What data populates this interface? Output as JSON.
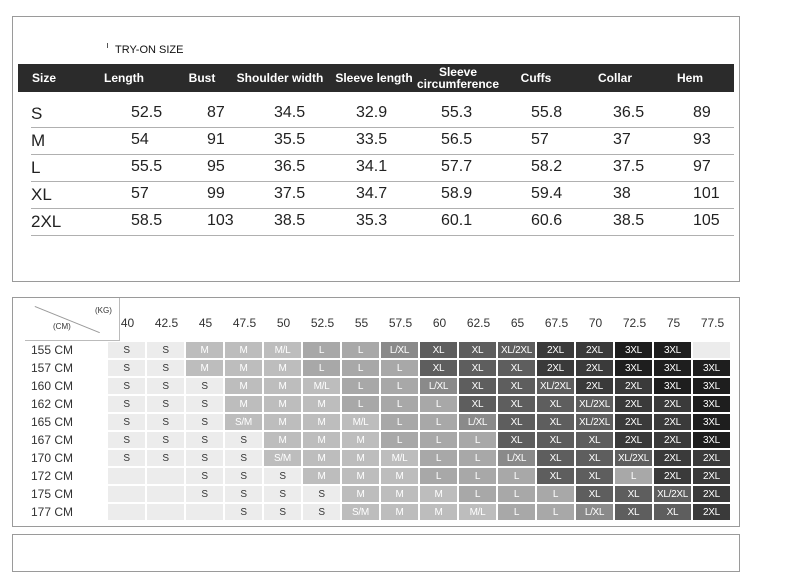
{
  "measurement": {
    "label": "TRY-ON SIZE",
    "headers": [
      "Size",
      "Length",
      "Bust",
      "Shoulder width",
      "Sleeve length",
      "Sleeve circumference",
      "Cuffs",
      "Collar",
      "Hem"
    ],
    "rows": [
      [
        "S",
        "52.5",
        "87",
        "34.5",
        "32.9",
        "55.3",
        "55.8",
        "36.5",
        "89"
      ],
      [
        "M",
        "54",
        "91",
        "35.5",
        "33.5",
        "56.5",
        "57",
        "37",
        "93"
      ],
      [
        "L",
        "55.5",
        "95",
        "36.5",
        "34.1",
        "57.7",
        "58.2",
        "37.5",
        "97"
      ],
      [
        "XL",
        "57",
        "99",
        "37.5",
        "34.7",
        "58.9",
        "59.4",
        "38",
        "101"
      ],
      [
        "2XL",
        "58.5",
        "103",
        "38.5",
        "35.3",
        "60.1",
        "60.6",
        "38.5",
        "105"
      ]
    ]
  },
  "size_grid": {
    "weight_unit": "(KG)",
    "height_unit": "(CM)",
    "weights": [
      "40",
      "42.5",
      "45",
      "47.5",
      "50",
      "52.5",
      "55",
      "57.5",
      "60",
      "62.5",
      "65",
      "67.5",
      "70",
      "72.5",
      "75",
      "77.5"
    ],
    "rows": [
      {
        "height": "155 CM",
        "sizes": [
          "S",
          "S",
          "M",
          "M",
          "M/L",
          "L",
          "L",
          "L/XL",
          "XL",
          "XL",
          "XL/2XL",
          "2XL",
          "2XL",
          "3XL",
          "3XL",
          ""
        ]
      },
      {
        "height": "157 CM",
        "sizes": [
          "S",
          "S",
          "M",
          "M",
          "M",
          "L",
          "L",
          "L",
          "XL",
          "XL",
          "XL",
          "2XL",
          "2XL",
          "3XL",
          "3XL",
          "3XL"
        ]
      },
      {
        "height": "160 CM",
        "sizes": [
          "S",
          "S",
          "S",
          "M",
          "M",
          "M/L",
          "L",
          "L",
          "L/XL",
          "XL",
          "XL",
          "XL/2XL",
          "2XL",
          "2XL",
          "3XL",
          "3XL"
        ]
      },
      {
        "height": "162 CM",
        "sizes": [
          "S",
          "S",
          "S",
          "M",
          "M",
          "M",
          "L",
          "L",
          "L",
          "XL",
          "XL",
          "XL",
          "XL/2XL",
          "2XL",
          "2XL",
          "3XL"
        ]
      },
      {
        "height": "165 CM",
        "sizes": [
          "S",
          "S",
          "S",
          "S/M",
          "M",
          "M",
          "M/L",
          "L",
          "L",
          "L/XL",
          "XL",
          "XL",
          "XL/2XL",
          "2XL",
          "2XL",
          "3XL"
        ]
      },
      {
        "height": "167 CM",
        "sizes": [
          "S",
          "S",
          "S",
          "S",
          "M",
          "M",
          "M",
          "L",
          "L",
          "L",
          "XL",
          "XL",
          "XL",
          "2XL",
          "2XL",
          "3XL"
        ]
      },
      {
        "height": "170 CM",
        "sizes": [
          "S",
          "S",
          "S",
          "S",
          "S/M",
          "M",
          "M",
          "M/L",
          "L",
          "L",
          "L/XL",
          "XL",
          "XL",
          "XL/2XL",
          "2XL",
          "2XL"
        ]
      },
      {
        "height": "172 CM",
        "sizes": [
          "",
          "",
          "S",
          "S",
          "S",
          "M",
          "M",
          "M",
          "L",
          "L",
          "L",
          "XL",
          "XL",
          "L",
          "2XL",
          "2XL"
        ]
      },
      {
        "height": "175 CM",
        "sizes": [
          "",
          "",
          "S",
          "S",
          "S",
          "S",
          "M",
          "M",
          "M",
          "L",
          "L",
          "L",
          "XL",
          "XL",
          "XL/2XL",
          "2XL"
        ]
      },
      {
        "height": "177 CM",
        "sizes": [
          "",
          "",
          "",
          "S",
          "S",
          "S",
          "S/M",
          "M",
          "M",
          "M/L",
          "L",
          "L",
          "L/XL",
          "XL",
          "XL",
          "2XL"
        ]
      }
    ],
    "colors": {
      "S": "#ececec",
      "S/M": "#bdbdbd",
      "M": "#bdbdbd",
      "M/L": "#bdbdbd",
      "L": "#a8a8a8",
      "L/XL": "#8a8a8a",
      "XL": "#5e5e5e",
      "XL/2XL": "#5e5e5e",
      "2XL": "#3a3a3a",
      "3XL": "#1e1e1e",
      "": "#ececec"
    }
  }
}
